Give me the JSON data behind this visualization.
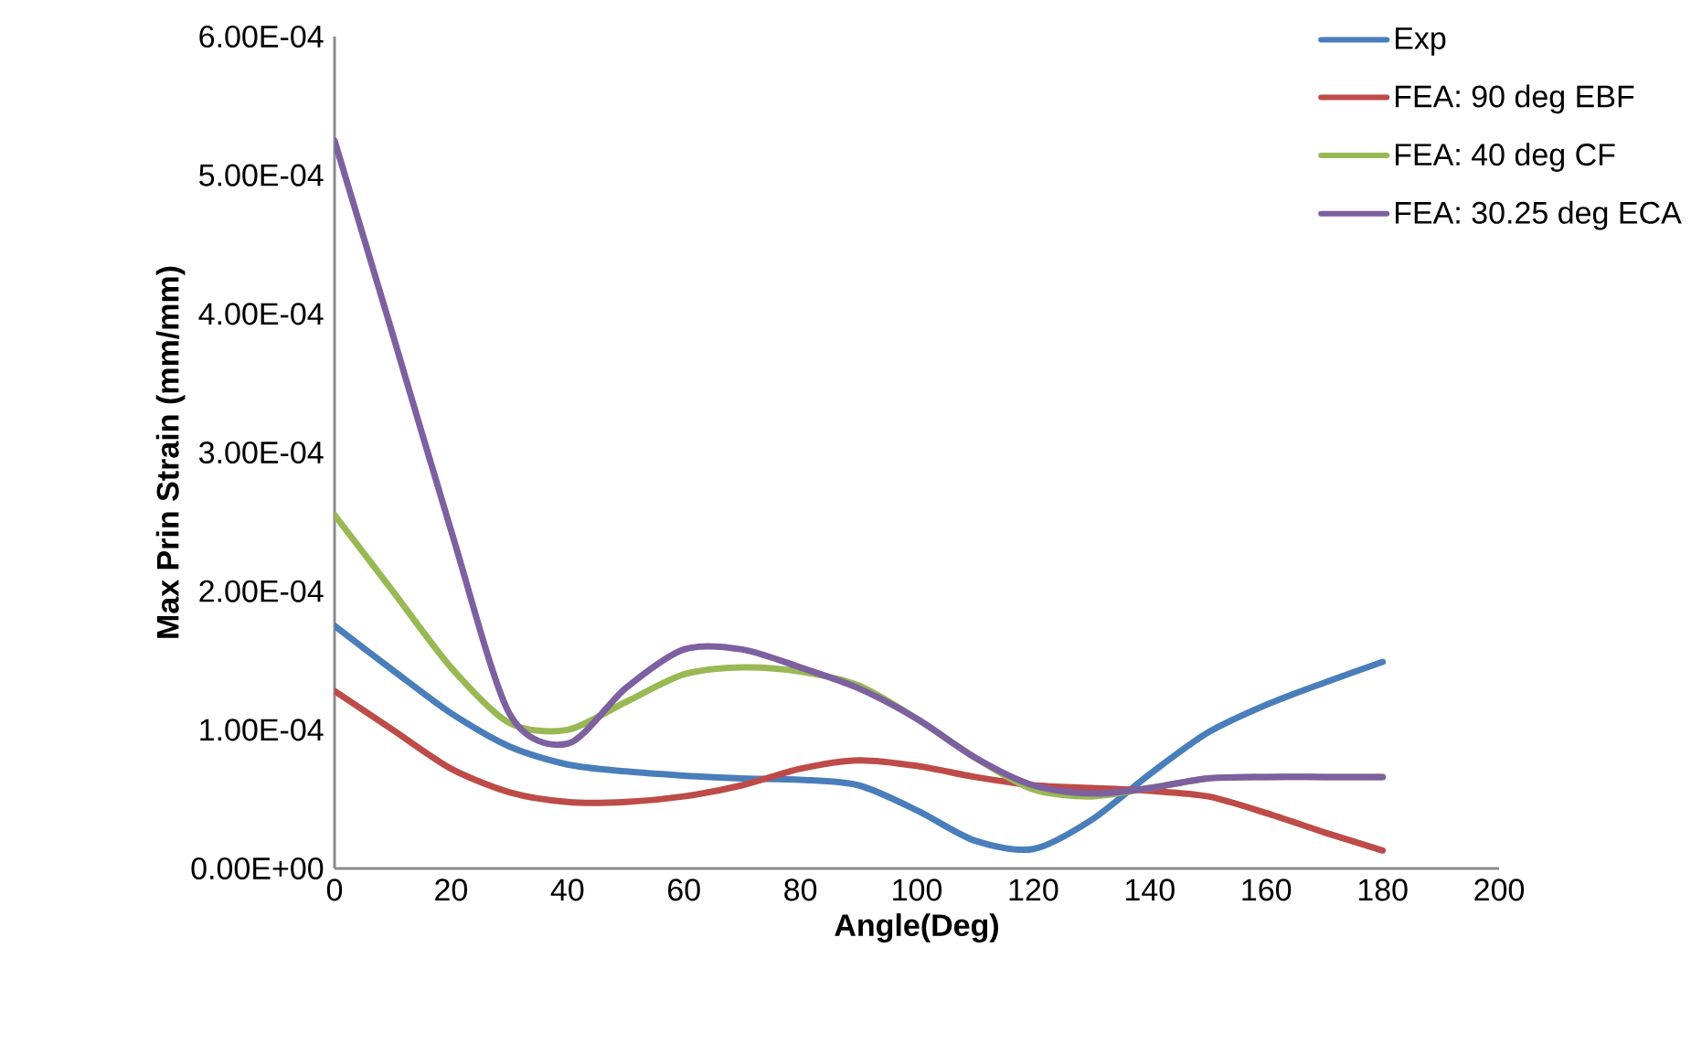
{
  "chart_data": {
    "type": "line",
    "xlabel": "Angle(Deg)",
    "ylabel": "Max Prin Strain  (mm/mm)",
    "x": [
      0,
      10,
      20,
      30,
      40,
      50,
      60,
      70,
      80,
      90,
      100,
      110,
      120,
      130,
      140,
      150,
      160,
      170,
      180
    ],
    "series": [
      {
        "name": "Exp",
        "color": "#4a7ebb",
        "values": [
          0.000175,
          0.000143,
          0.000112,
          8.8e-05,
          7.5e-05,
          7e-05,
          6.7e-05,
          6.5e-05,
          6.4e-05,
          6e-05,
          4.2e-05,
          2e-05,
          1.4e-05,
          3.5e-05,
          6.8e-05,
          9.8e-05,
          0.000118,
          0.000134,
          0.000149
        ]
      },
      {
        "name": "FEA: 90 deg EBF",
        "color": "#be4b48",
        "values": [
          0.000128,
          0.0001,
          7.2e-05,
          5.5e-05,
          4.8e-05,
          4.8e-05,
          5.2e-05,
          6e-05,
          7.2e-05,
          7.8e-05,
          7.4e-05,
          6.6e-05,
          6e-05,
          5.8e-05,
          5.6e-05,
          5.2e-05,
          4e-05,
          2.6e-05,
          1.3e-05
        ]
      },
      {
        "name": "FEA: 40 deg CF",
        "color": "#98b954",
        "values": [
          0.000255,
          0.0002,
          0.000145,
          0.000105,
          0.0001,
          0.00012,
          0.00014,
          0.000145,
          0.000142,
          0.000132,
          0.000108,
          8e-05,
          5.7e-05,
          5.2e-05,
          5.8e-05,
          6.5e-05,
          6.6e-05,
          6.6e-05,
          6.6e-05
        ]
      },
      {
        "name": "FEA: 30.25 deg ECA",
        "color": "#7d60a0",
        "values": [
          0.000525,
          0.000385,
          0.000244,
          0.000112,
          9e-05,
          0.00013,
          0.000158,
          0.000158,
          0.000145,
          0.00013,
          0.000108,
          8e-05,
          6e-05,
          5.4e-05,
          5.8e-05,
          6.5e-05,
          6.6e-05,
          6.6e-05,
          6.6e-05
        ]
      }
    ],
    "xlim": [
      0,
      200
    ],
    "xticks": [
      0,
      20,
      40,
      60,
      80,
      100,
      120,
      140,
      160,
      180,
      200
    ],
    "ylim": [
      0,
      0.0006
    ],
    "yticks": [
      {
        "value": 0,
        "label": "0.00E+00"
      },
      {
        "value": 0.0001,
        "label": "1.00E-04"
      },
      {
        "value": 0.0002,
        "label": "2.00E-04"
      },
      {
        "value": 0.0003,
        "label": "3.00E-04"
      },
      {
        "value": 0.0004,
        "label": "4.00E-04"
      },
      {
        "value": 0.0005,
        "label": "5.00E-04"
      },
      {
        "value": 0.0006,
        "label": "6.00E-04"
      }
    ],
    "grid": false,
    "legend": "top right",
    "marker": "none",
    "line_style": "solid"
  }
}
